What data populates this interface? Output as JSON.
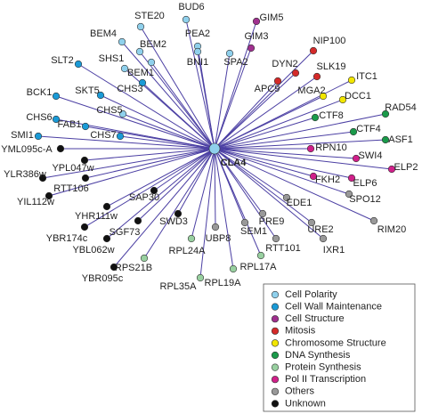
{
  "center": {
    "label": "CLA4",
    "color": "#8fd0ec"
  },
  "nodes": [
    {
      "label": "BUD6",
      "color": "#8fd0ec"
    },
    {
      "label": "STE20",
      "color": "#8fd0ec"
    },
    {
      "label": "GIM5",
      "color": "#a0308f"
    },
    {
      "label": "BEM4",
      "color": "#8fd0ec"
    },
    {
      "label": "PEA2",
      "color": "#8fd0ec"
    },
    {
      "label": "GIM3",
      "color": "#a0308f"
    },
    {
      "label": "BEM2",
      "color": "#8fd0ec"
    },
    {
      "label": "NIP100",
      "color": "#d42a2a"
    },
    {
      "label": "SLT2",
      "color": "#1a9ad6"
    },
    {
      "label": "SHS1",
      "color": "#8fd0ec"
    },
    {
      "label": "BNI1",
      "color": "#8fd0ec"
    },
    {
      "label": "SPA2",
      "color": "#8fd0ec"
    },
    {
      "label": "BEM1",
      "color": "#8fd0ec"
    },
    {
      "label": "DYN2",
      "color": "#d42a2a"
    },
    {
      "label": "SLK19",
      "color": "#d42a2a"
    },
    {
      "label": "ITC1",
      "color": "#f2e600"
    },
    {
      "label": "BCK1",
      "color": "#1a9ad6"
    },
    {
      "label": "SKT5",
      "color": "#1a9ad6"
    },
    {
      "label": "CHS3",
      "color": "#1a9ad6"
    },
    {
      "label": "APC9",
      "color": "#d42a2a"
    },
    {
      "label": "MGA2",
      "color": "#f2e600"
    },
    {
      "label": "DCC1",
      "color": "#f2e600"
    },
    {
      "label": "CHS6",
      "color": "#1a9ad6"
    },
    {
      "label": "CHS5",
      "color": "#8fd0ec"
    },
    {
      "label": "CTF8",
      "color": "#1a9a4a"
    },
    {
      "label": "RAD54",
      "color": "#1a9a4a"
    },
    {
      "label": "SMI1",
      "color": "#1a9ad6"
    },
    {
      "label": "FAB1",
      "color": "#1a9ad6"
    },
    {
      "label": "CHS7",
      "color": "#1a9ad6"
    },
    {
      "label": "CTF4",
      "color": "#1a9a4a"
    },
    {
      "label": "ASF1",
      "color": "#1a9a4a"
    },
    {
      "label": "RPN10",
      "color": "#d0208a"
    },
    {
      "label": "YML095c-A",
      "color": "#111111"
    },
    {
      "label": "YPL047w",
      "color": "#111111"
    },
    {
      "label": "SWI4",
      "color": "#d0208a"
    },
    {
      "label": "ELP2",
      "color": "#d0208a"
    },
    {
      "label": "YLR386w",
      "color": "#111111"
    },
    {
      "label": "RTT106",
      "color": "#111111"
    },
    {
      "label": "FKH2",
      "color": "#d0208a"
    },
    {
      "label": "ELP6",
      "color": "#d0208a"
    },
    {
      "label": "SPO12",
      "color": "#999999"
    },
    {
      "label": "SAP30",
      "color": "#111111"
    },
    {
      "label": "YIL112w",
      "color": "#111111"
    },
    {
      "label": "EDE1",
      "color": "#999999"
    },
    {
      "label": "YHR111w",
      "color": "#111111"
    },
    {
      "label": "SWD3",
      "color": "#111111"
    },
    {
      "label": "SGF73",
      "color": "#111111"
    },
    {
      "label": "PRE9",
      "color": "#999999"
    },
    {
      "label": "URE2",
      "color": "#999999"
    },
    {
      "label": "RIM20",
      "color": "#999999"
    },
    {
      "label": "YBR174c",
      "color": "#111111"
    },
    {
      "label": "YBL062w",
      "color": "#111111"
    },
    {
      "label": "SEM1",
      "color": "#999999"
    },
    {
      "label": "UBP8",
      "color": "#999999"
    },
    {
      "label": "RTT101",
      "color": "#999999"
    },
    {
      "label": "IXR1",
      "color": "#999999"
    },
    {
      "label": "RPL24A",
      "color": "#98d0a0"
    },
    {
      "label": "RPL17A",
      "color": "#98d0a0"
    },
    {
      "label": "RPS21B",
      "color": "#98d0a0"
    },
    {
      "label": "YBR095c",
      "color": "#111111"
    },
    {
      "label": "RPL19A",
      "color": "#98d0a0"
    },
    {
      "label": "RPL35A",
      "color": "#98d0a0"
    }
  ],
  "legend": {
    "items": [
      {
        "label": "Cell Polarity",
        "color": "#8fd0ec"
      },
      {
        "label": "Cell Wall Maintenance",
        "color": "#1a9ad6"
      },
      {
        "label": "Cell Structure",
        "color": "#a0308f"
      },
      {
        "label": "Mitosis",
        "color": "#d42a2a"
      },
      {
        "label": "Chromosome Structure",
        "color": "#f2e600"
      },
      {
        "label": "DNA Synthesis",
        "color": "#1a9a4a"
      },
      {
        "label": "Protein Synthesis",
        "color": "#98d0a0"
      },
      {
        "label": "Pol II Transcription",
        "color": "#d0208a"
      },
      {
        "label": "Others",
        "color": "#999999"
      },
      {
        "label": "Unknown",
        "color": "#111111"
      }
    ]
  }
}
